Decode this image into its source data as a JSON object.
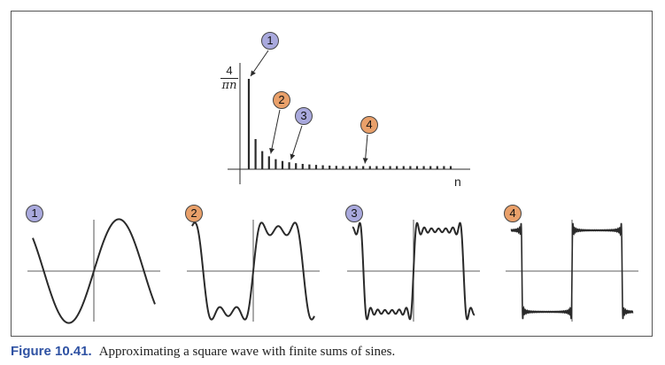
{
  "colors": {
    "badge_purple": "#a9a9dd",
    "badge_orange": "#e9a06a",
    "caption_blue": "#2f52a3",
    "ink": "#2a2a2a"
  },
  "spectrum": {
    "y_label_numerator": "4",
    "y_label_denominator": "πn",
    "x_label": "n",
    "coefficient_rule": "4/(πn) for odd n",
    "bar_count": 31,
    "callouts": [
      {
        "label": "1",
        "color": "purple",
        "bar_index": 1
      },
      {
        "label": "2",
        "color": "orange",
        "bar_index": 4
      },
      {
        "label": "3",
        "color": "purple",
        "bar_index": 7
      },
      {
        "label": "4",
        "color": "orange",
        "bar_index": 18
      }
    ]
  },
  "panels": [
    {
      "label": "1",
      "color": "purple",
      "terms": 1
    },
    {
      "label": "2",
      "color": "orange",
      "terms": 3
    },
    {
      "label": "3",
      "color": "purple",
      "terms": 7
    },
    {
      "label": "4",
      "color": "orange",
      "terms": 30
    }
  ],
  "caption": {
    "number": "Figure 10.41.",
    "text": "Approximating a square wave with finite sums of sines."
  }
}
